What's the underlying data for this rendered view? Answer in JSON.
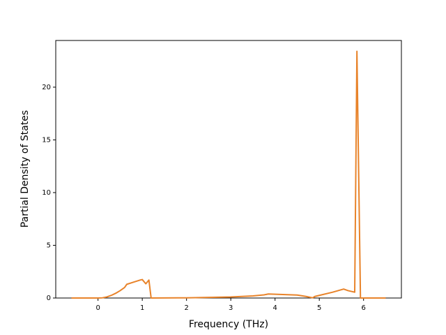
{
  "chart_data": {
    "type": "line",
    "x_label": "Frequency (THz)",
    "y_label": "Partial Density of States",
    "x": [
      -0.6,
      0,
      0.1,
      0.2,
      0.3,
      0.4,
      0.5,
      0.6,
      0.65,
      0.8,
      0.95,
      1.0,
      1.08,
      1.15,
      1.2,
      2,
      3,
      3.5,
      3.75,
      3.85,
      4.5,
      4.7,
      4.85,
      4.9,
      5.0,
      5.3,
      5.55,
      5.65,
      5.8,
      5.85,
      5.93,
      6.5
    ],
    "series": [
      {
        "color": "#e8832a",
        "values": [
          0,
          0,
          0.02,
          0.1,
          0.25,
          0.45,
          0.7,
          1.0,
          1.3,
          1.5,
          1.7,
          1.75,
          1.35,
          1.7,
          0,
          0.02,
          0.1,
          0.2,
          0.3,
          0.38,
          0.28,
          0.15,
          0.02,
          0.15,
          0.25,
          0.55,
          0.85,
          0.7,
          0.55,
          23.4,
          0,
          0
        ]
      }
    ],
    "xlim": [
      -0.955,
      6.855
    ],
    "ylim": [
      0,
      24.43
    ],
    "xticks": [
      0,
      1,
      2,
      3,
      4,
      5,
      6
    ],
    "yticks": [
      0,
      5,
      10,
      15,
      20
    ]
  }
}
